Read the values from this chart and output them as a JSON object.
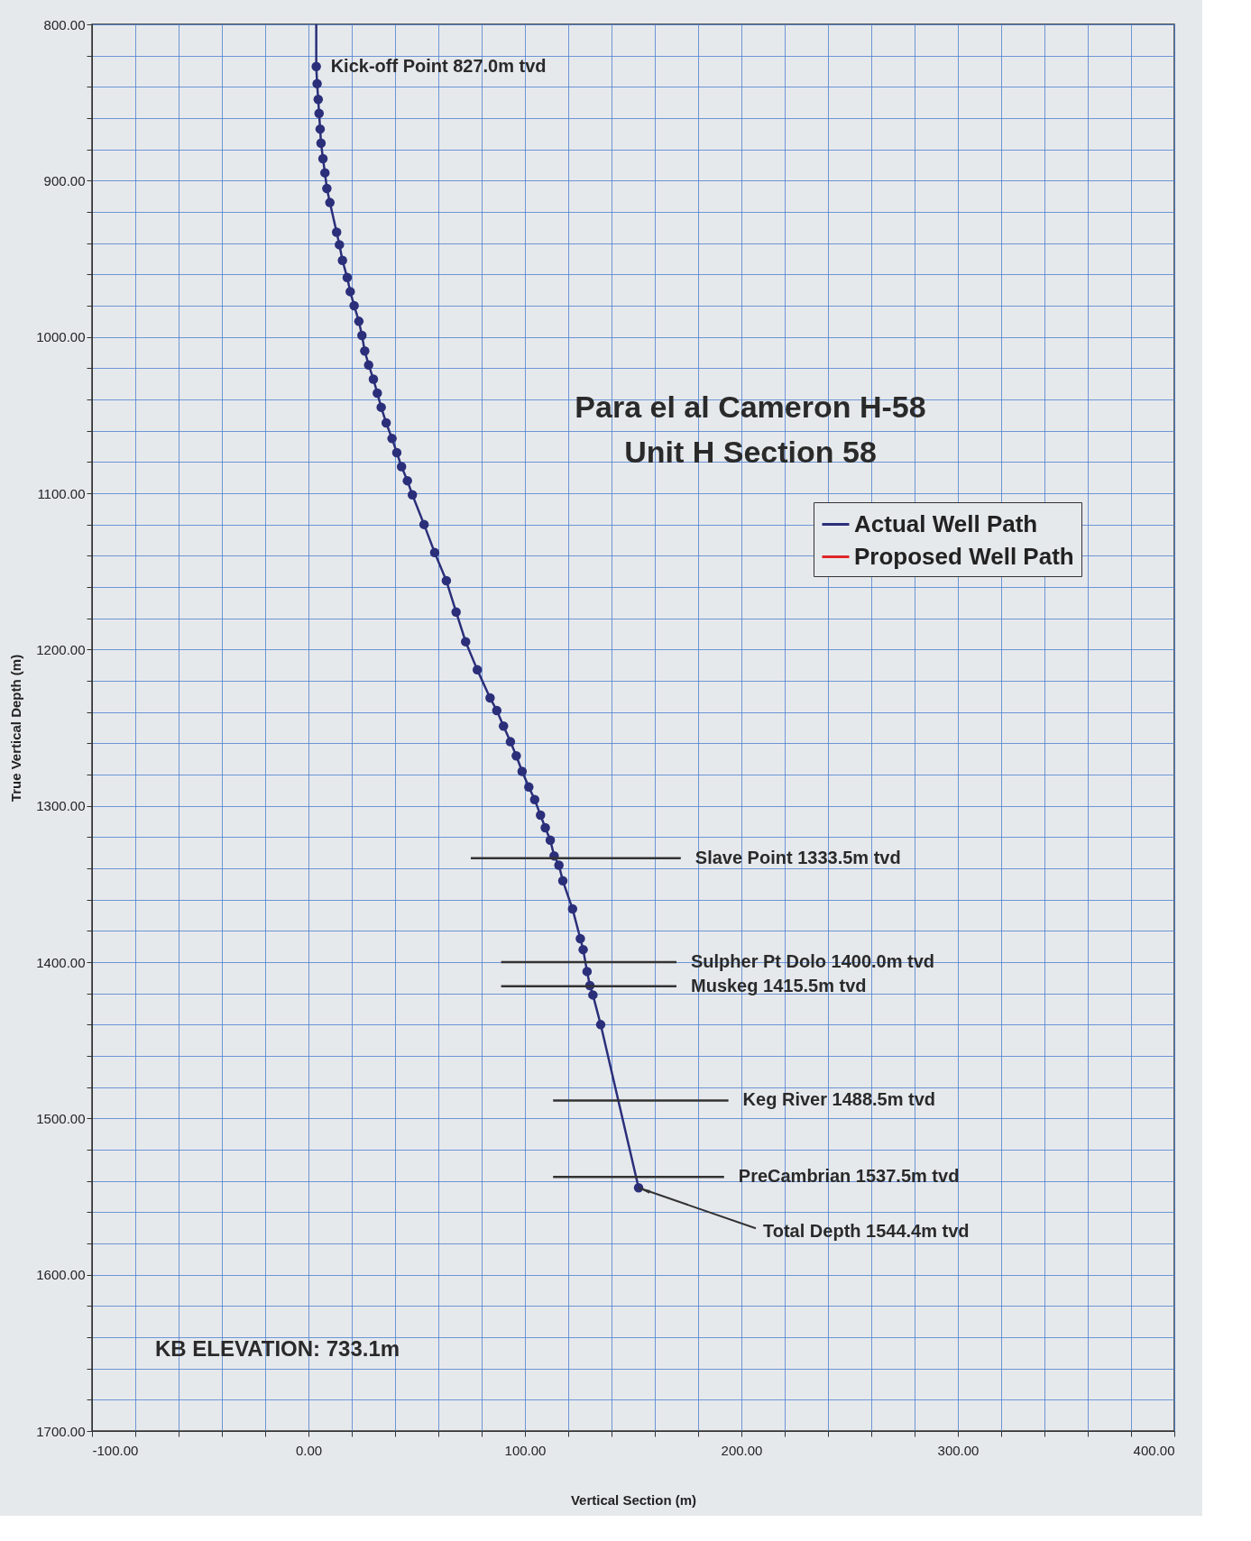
{
  "chart_data": {
    "type": "line",
    "title": [
      "Para el al Cameron H-58",
      "Unit H Section 58"
    ],
    "xlabel": "Vertical Section (m)",
    "ylabel": "True Vertical Depth (m)",
    "xlim": [
      -100,
      400
    ],
    "ylim": [
      1700,
      800
    ],
    "xticks": [
      {
        "value": -100,
        "label": "-100.00"
      },
      {
        "value": -80,
        "label": null
      },
      {
        "value": -60,
        "label": null
      },
      {
        "value": -40,
        "label": null
      },
      {
        "value": -20,
        "label": null
      },
      {
        "value": 0,
        "label": "0.00"
      },
      {
        "value": 20,
        "label": null
      },
      {
        "value": 40,
        "label": null
      },
      {
        "value": 60,
        "label": null
      },
      {
        "value": 80,
        "label": null
      },
      {
        "value": 100,
        "label": "100.00"
      },
      {
        "value": 120,
        "label": null
      },
      {
        "value": 140,
        "label": null
      },
      {
        "value": 160,
        "label": null
      },
      {
        "value": 180,
        "label": null
      },
      {
        "value": 200,
        "label": "200.00"
      },
      {
        "value": 220,
        "label": null
      },
      {
        "value": 240,
        "label": null
      },
      {
        "value": 260,
        "label": null
      },
      {
        "value": 280,
        "label": null
      },
      {
        "value": 300,
        "label": "300.00"
      },
      {
        "value": 320,
        "label": null
      },
      {
        "value": 340,
        "label": null
      },
      {
        "value": 360,
        "label": null
      },
      {
        "value": 380,
        "label": null
      },
      {
        "value": 400,
        "label": "400.00"
      }
    ],
    "yticks": [
      {
        "value": 800,
        "label": "800.00"
      },
      {
        "value": 820,
        "label": null
      },
      {
        "value": 840,
        "label": null
      },
      {
        "value": 860,
        "label": null
      },
      {
        "value": 880,
        "label": null
      },
      {
        "value": 900,
        "label": "900.00"
      },
      {
        "value": 920,
        "label": null
      },
      {
        "value": 940,
        "label": null
      },
      {
        "value": 960,
        "label": null
      },
      {
        "value": 980,
        "label": null
      },
      {
        "value": 1000,
        "label": "1000.00"
      },
      {
        "value": 1020,
        "label": null
      },
      {
        "value": 1040,
        "label": null
      },
      {
        "value": 1060,
        "label": null
      },
      {
        "value": 1080,
        "label": null
      },
      {
        "value": 1100,
        "label": "1100.00"
      },
      {
        "value": 1120,
        "label": null
      },
      {
        "value": 1140,
        "label": null
      },
      {
        "value": 1160,
        "label": null
      },
      {
        "value": 1180,
        "label": null
      },
      {
        "value": 1200,
        "label": "1200.00"
      },
      {
        "value": 1220,
        "label": null
      },
      {
        "value": 1240,
        "label": null
      },
      {
        "value": 1260,
        "label": null
      },
      {
        "value": 1280,
        "label": null
      },
      {
        "value": 1300,
        "label": "1300.00"
      },
      {
        "value": 1320,
        "label": null
      },
      {
        "value": 1340,
        "label": null
      },
      {
        "value": 1360,
        "label": null
      },
      {
        "value": 1380,
        "label": null
      },
      {
        "value": 1400,
        "label": "1400.00"
      },
      {
        "value": 1420,
        "label": null
      },
      {
        "value": 1440,
        "label": null
      },
      {
        "value": 1460,
        "label": null
      },
      {
        "value": 1480,
        "label": null
      },
      {
        "value": 1500,
        "label": "1500.00"
      },
      {
        "value": 1520,
        "label": null
      },
      {
        "value": 1540,
        "label": null
      },
      {
        "value": 1560,
        "label": null
      },
      {
        "value": 1580,
        "label": null
      },
      {
        "value": 1600,
        "label": "1600.00"
      },
      {
        "value": 1620,
        "label": null
      },
      {
        "value": 1640,
        "label": null
      },
      {
        "value": 1660,
        "label": null
      },
      {
        "value": 1680,
        "label": null
      },
      {
        "value": 1700,
        "label": "1700.00"
      }
    ],
    "grid": true,
    "legend": "right",
    "line_style": "solid",
    "series": [
      {
        "name": "Actual Well Path",
        "color": "#2b2f7a",
        "marker": "circle",
        "x": [
          3.6,
          4.0,
          4.5,
          4.9,
          5.4,
          5.8,
          6.7,
          7.6,
          8.5,
          9.9,
          13.0,
          14.3,
          15.7,
          17.9,
          19.3,
          21.1,
          23.3,
          24.7,
          26.0,
          27.8,
          30.0,
          31.8,
          33.6,
          35.9,
          38.6,
          40.8,
          43.0,
          45.7,
          48.0,
          53.4,
          58.3,
          63.7,
          68.2,
          72.6,
          78.0,
          83.9,
          87.0,
          90.1,
          93.3,
          96.0,
          98.7,
          101.8,
          104.5,
          107.2,
          109.4,
          111.7,
          113.5,
          115.7,
          117.5,
          122.0,
          125.6,
          126.9,
          128.7,
          130.0,
          131.4,
          135.0,
          152.5
        ],
        "values": [
          827,
          838,
          848,
          857,
          867,
          876,
          886,
          895,
          905,
          914,
          933,
          941,
          951,
          962,
          971,
          980,
          990,
          999,
          1009,
          1018,
          1027,
          1036,
          1045,
          1055,
          1065,
          1074,
          1083,
          1092,
          1101,
          1120,
          1138,
          1156,
          1176,
          1195,
          1213,
          1231,
          1239,
          1249,
          1259,
          1268,
          1278,
          1288,
          1296,
          1306,
          1314,
          1322,
          1332,
          1338,
          1348,
          1366,
          1385,
          1392,
          1406,
          1415,
          1421,
          1440,
          1544.4
        ]
      },
      {
        "type": "line",
        "color": "#2b2f7a",
        "marker": "none",
        "x": [
          3.6,
          3.6
        ],
        "values": [
          800,
          827
        ]
      },
      {
        "name": "Proposed Well Path",
        "color": "#e0262a",
        "marker": "circle"
      },
      {
        "type": "line",
        "color": "#333333",
        "marker": "none",
        "x": [
          75,
          172
        ],
        "values": [
          1333.5,
          1333.5
        ]
      },
      {
        "type": "line",
        "color": "#333333",
        "marker": "none",
        "x": [
          89,
          170
        ],
        "values": [
          1400,
          1400
        ]
      },
      {
        "type": "line",
        "color": "#333333",
        "marker": "none",
        "x": [
          89,
          170
        ],
        "values": [
          1415.5,
          1415.5
        ]
      },
      {
        "type": "line",
        "color": "#333333",
        "marker": "none",
        "x": [
          113,
          194
        ],
        "values": [
          1488.5,
          1488.5
        ]
      },
      {
        "type": "line",
        "color": "#333333",
        "marker": "none",
        "x": [
          113,
          192
        ],
        "values": [
          1537.5,
          1537.5
        ]
      }
    ],
    "annotations": [
      {
        "text": "Kick-off Point 827.0m tvd",
        "x": 3.6,
        "y": 827
      },
      {
        "text": "Slave Point 1333.5m tvd",
        "x": 172,
        "y": 1333.5
      },
      {
        "text": "Sulpher Pt Dolo 1400.0m tvd",
        "x": 170,
        "y": 1400
      },
      {
        "text": "Muskeg 1415.5m tvd",
        "x": 170,
        "y": 1415.5
      },
      {
        "text": "Keg River 1488.5m tvd",
        "x": 194,
        "y": 1488.5
      },
      {
        "text": "PreCambrian 1537.5m tvd",
        "x": 192,
        "y": 1537.5
      },
      {
        "text": "Total Depth 1544.4m tvd",
        "x": 152.5,
        "y": 1544.4
      },
      "KB ELEVATION: 733.1m"
    ]
  }
}
